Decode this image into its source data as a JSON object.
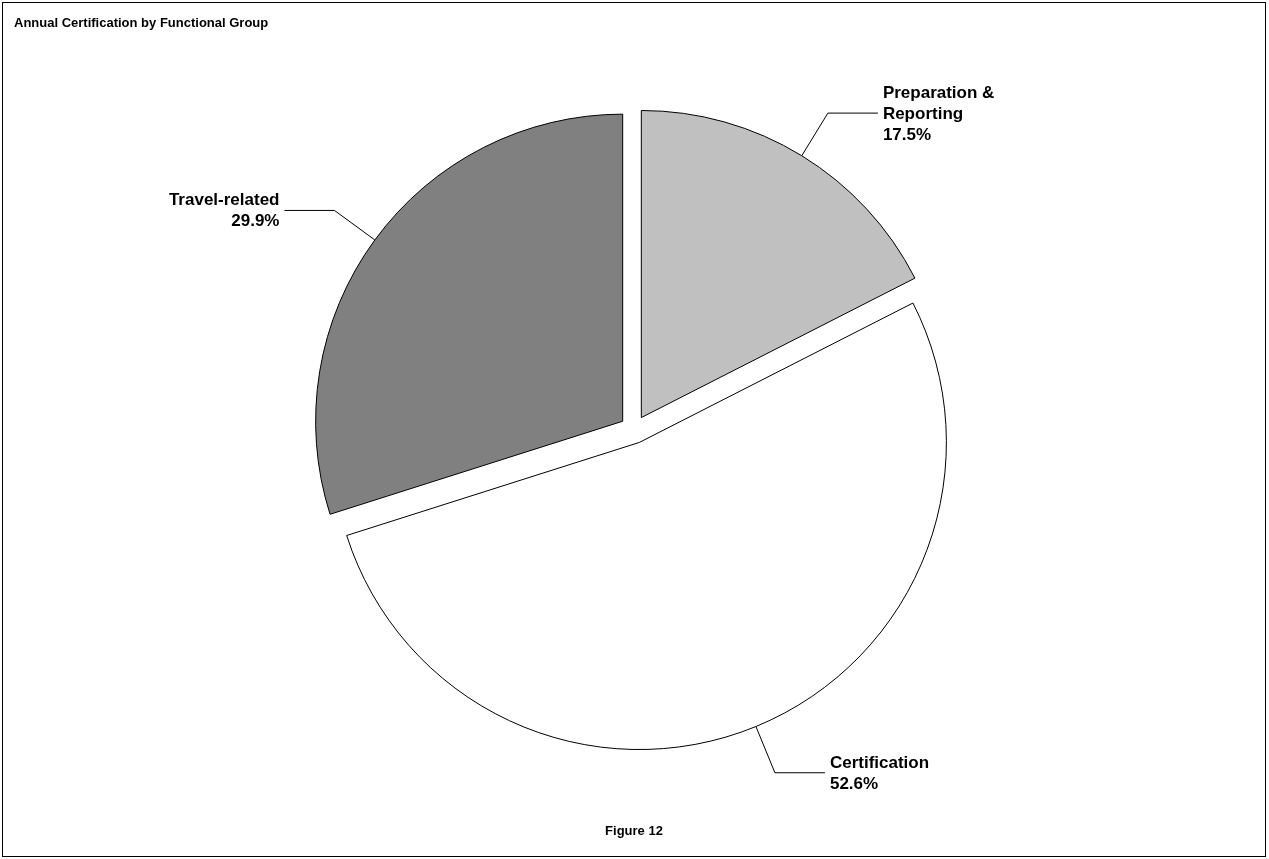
{
  "chart_data": {
    "type": "pie",
    "title": "Annual Certification by Functional Group",
    "categories": [
      "Preparation & Reporting",
      "Certification",
      "Travel-related"
    ],
    "values": [
      17.5,
      52.6,
      29.9
    ],
    "value_labels": [
      "17.5%",
      "52.6%",
      "29.9%"
    ],
    "colors": [
      "#c0c0c0",
      "#ffffff",
      "#808080"
    ],
    "legend": false,
    "annotations": [
      "Figure 12"
    ]
  }
}
